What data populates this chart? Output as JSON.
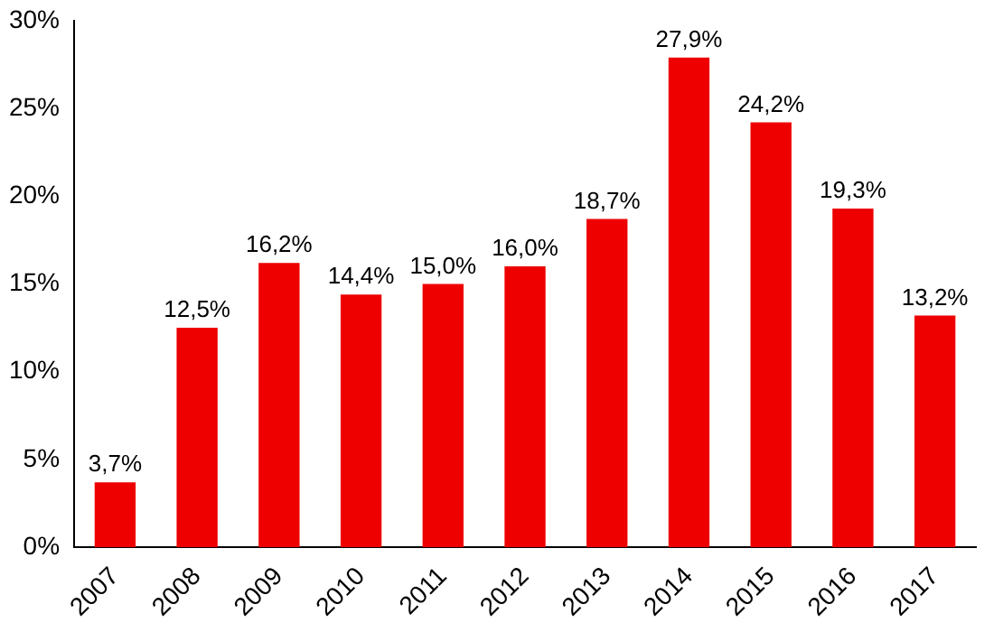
{
  "chart_data": {
    "type": "bar",
    "categories": [
      "2007",
      "2008",
      "2009",
      "2010",
      "2011",
      "2012",
      "2013",
      "2014",
      "2015",
      "2016",
      "2017"
    ],
    "values": [
      3.7,
      12.5,
      16.2,
      14.4,
      15.0,
      16.0,
      18.7,
      27.9,
      24.2,
      19.3,
      13.2
    ],
    "value_labels": [
      "3,7%",
      "12,5%",
      "16,2%",
      "14,4%",
      "15,0%",
      "16,0%",
      "18,7%",
      "27,9%",
      "24,2%",
      "19,3%",
      "13,2%"
    ],
    "color": "#ee0000",
    "ylim": [
      0,
      30
    ],
    "yticks": [
      {
        "value": 0,
        "label": "0%"
      },
      {
        "value": 5,
        "label": "5%"
      },
      {
        "value": 10,
        "label": "10%"
      },
      {
        "value": 15,
        "label": "15%"
      },
      {
        "value": 20,
        "label": "20%"
      },
      {
        "value": 25,
        "label": "25%"
      },
      {
        "value": 30,
        "label": "30%"
      }
    ],
    "grid": false,
    "legend": false
  }
}
